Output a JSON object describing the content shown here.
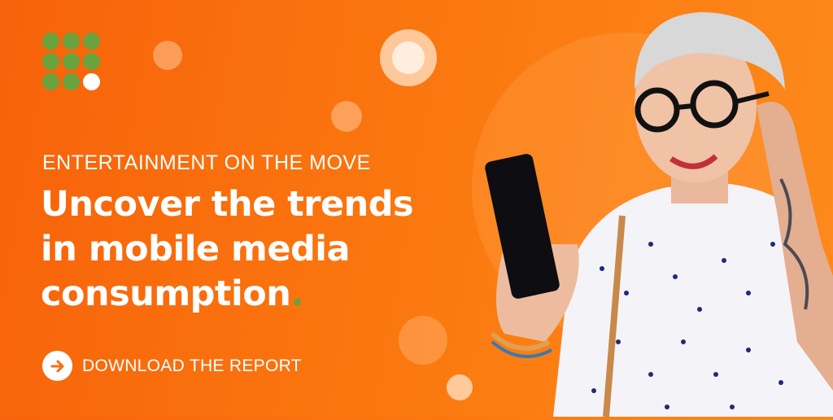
{
  "logo": {
    "dots_green": 8,
    "dots_white": 1,
    "green": "#6aa23e"
  },
  "banner": {
    "subtitle": "ENTERTAINMENT ON THE MOVE",
    "headline_lines": [
      "Uncover the trends",
      "in mobile media",
      "consumption"
    ],
    "headline_period": ".",
    "cta_label": "DOWNLOAD THE REPORT",
    "cta_icon": "arrow-right-icon"
  },
  "colors": {
    "background": "#f96e0e",
    "accent_green": "#6aa23e",
    "text": "#ffffff"
  }
}
